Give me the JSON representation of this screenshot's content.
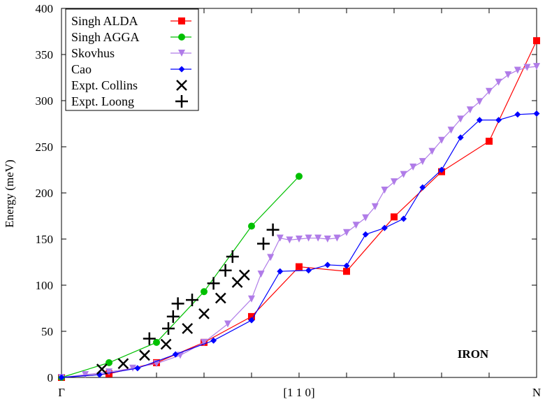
{
  "chart_data": {
    "type": "scatter",
    "title": "",
    "xlabel": "",
    "ylabel": "Energy (meV)",
    "xlim": [
      0,
      1
    ],
    "ylim": [
      0,
      400
    ],
    "yticks": [
      0,
      50,
      100,
      150,
      200,
      250,
      300,
      350,
      400
    ],
    "xticks": [
      {
        "value": 0,
        "label": "Γ"
      },
      {
        "value": 0.5,
        "label": "[1 1 0]"
      },
      {
        "value": 1,
        "label": "N"
      }
    ],
    "legend_position": "top-left",
    "annotation": "IRON",
    "series": [
      {
        "name": "Singh ALDA",
        "color": "#ff0000",
        "marker": "square",
        "line": true,
        "points": [
          [
            0,
            0
          ],
          [
            0.1,
            4
          ],
          [
            0.2,
            16
          ],
          [
            0.3,
            38
          ],
          [
            0.4,
            66
          ],
          [
            0.5,
            120
          ],
          [
            0.6,
            115
          ],
          [
            0.7,
            174
          ],
          [
            0.8,
            223
          ],
          [
            0.9,
            256
          ],
          [
            1.0,
            365
          ]
        ]
      },
      {
        "name": "Singh AGGA",
        "color": "#00c000",
        "marker": "circle",
        "line": true,
        "points": [
          [
            0,
            0
          ],
          [
            0.1,
            16
          ],
          [
            0.2,
            38
          ],
          [
            0.3,
            93
          ],
          [
            0.4,
            164
          ],
          [
            0.5,
            218
          ]
        ]
      },
      {
        "name": "Skovhus",
        "color": "#b07ce8",
        "marker": "triangle-down",
        "line": true,
        "points": [
          [
            0,
            0
          ],
          [
            0.05,
            3
          ],
          [
            0.1,
            6
          ],
          [
            0.15,
            10
          ],
          [
            0.2,
            15
          ],
          [
            0.25,
            24
          ],
          [
            0.3,
            38
          ],
          [
            0.35,
            58
          ],
          [
            0.4,
            85
          ],
          [
            0.42,
            112
          ],
          [
            0.44,
            130
          ],
          [
            0.46,
            151
          ],
          [
            0.48,
            149
          ],
          [
            0.5,
            150
          ],
          [
            0.52,
            151
          ],
          [
            0.54,
            151
          ],
          [
            0.56,
            150
          ],
          [
            0.58,
            151
          ],
          [
            0.6,
            157
          ],
          [
            0.62,
            165
          ],
          [
            0.64,
            173
          ],
          [
            0.66,
            185
          ],
          [
            0.68,
            203
          ],
          [
            0.7,
            212
          ],
          [
            0.72,
            220
          ],
          [
            0.74,
            228
          ],
          [
            0.76,
            234
          ],
          [
            0.78,
            245
          ],
          [
            0.8,
            257
          ],
          [
            0.82,
            268
          ],
          [
            0.84,
            280
          ],
          [
            0.86,
            290
          ],
          [
            0.88,
            299
          ],
          [
            0.9,
            310
          ],
          [
            0.92,
            320
          ],
          [
            0.94,
            328
          ],
          [
            0.96,
            333
          ],
          [
            0.98,
            336
          ],
          [
            1.0,
            337
          ]
        ]
      },
      {
        "name": "Cao",
        "color": "#0000ff",
        "marker": "diamond",
        "line": true,
        "points": [
          [
            0,
            0
          ],
          [
            0.08,
            3
          ],
          [
            0.16,
            10
          ],
          [
            0.24,
            25
          ],
          [
            0.32,
            40
          ],
          [
            0.4,
            62
          ],
          [
            0.46,
            115
          ],
          [
            0.52,
            116
          ],
          [
            0.56,
            122
          ],
          [
            0.6,
            121
          ],
          [
            0.64,
            155
          ],
          [
            0.68,
            162
          ],
          [
            0.72,
            172
          ],
          [
            0.76,
            206
          ],
          [
            0.8,
            225
          ],
          [
            0.84,
            260
          ],
          [
            0.88,
            279
          ],
          [
            0.92,
            279
          ],
          [
            0.96,
            285
          ],
          [
            1.0,
            286
          ]
        ]
      },
      {
        "name": "Expt. Collins",
        "color": "#000000",
        "marker": "x",
        "line": false,
        "points": [
          [
            0.085,
            9
          ],
          [
            0.13,
            15
          ],
          [
            0.175,
            24
          ],
          [
            0.22,
            36
          ],
          [
            0.265,
            53
          ],
          [
            0.3,
            69
          ],
          [
            0.335,
            86
          ],
          [
            0.37,
            103
          ],
          [
            0.385,
            111
          ]
        ]
      },
      {
        "name": "Expt. Loong",
        "color": "#000000",
        "marker": "plus",
        "line": false,
        "points": [
          [
            0.185,
            42
          ],
          [
            0.225,
            53
          ],
          [
            0.235,
            66
          ],
          [
            0.245,
            80
          ],
          [
            0.275,
            84
          ],
          [
            0.32,
            102
          ],
          [
            0.345,
            116
          ],
          [
            0.36,
            131
          ],
          [
            0.425,
            145
          ],
          [
            0.445,
            160
          ]
        ]
      }
    ]
  }
}
